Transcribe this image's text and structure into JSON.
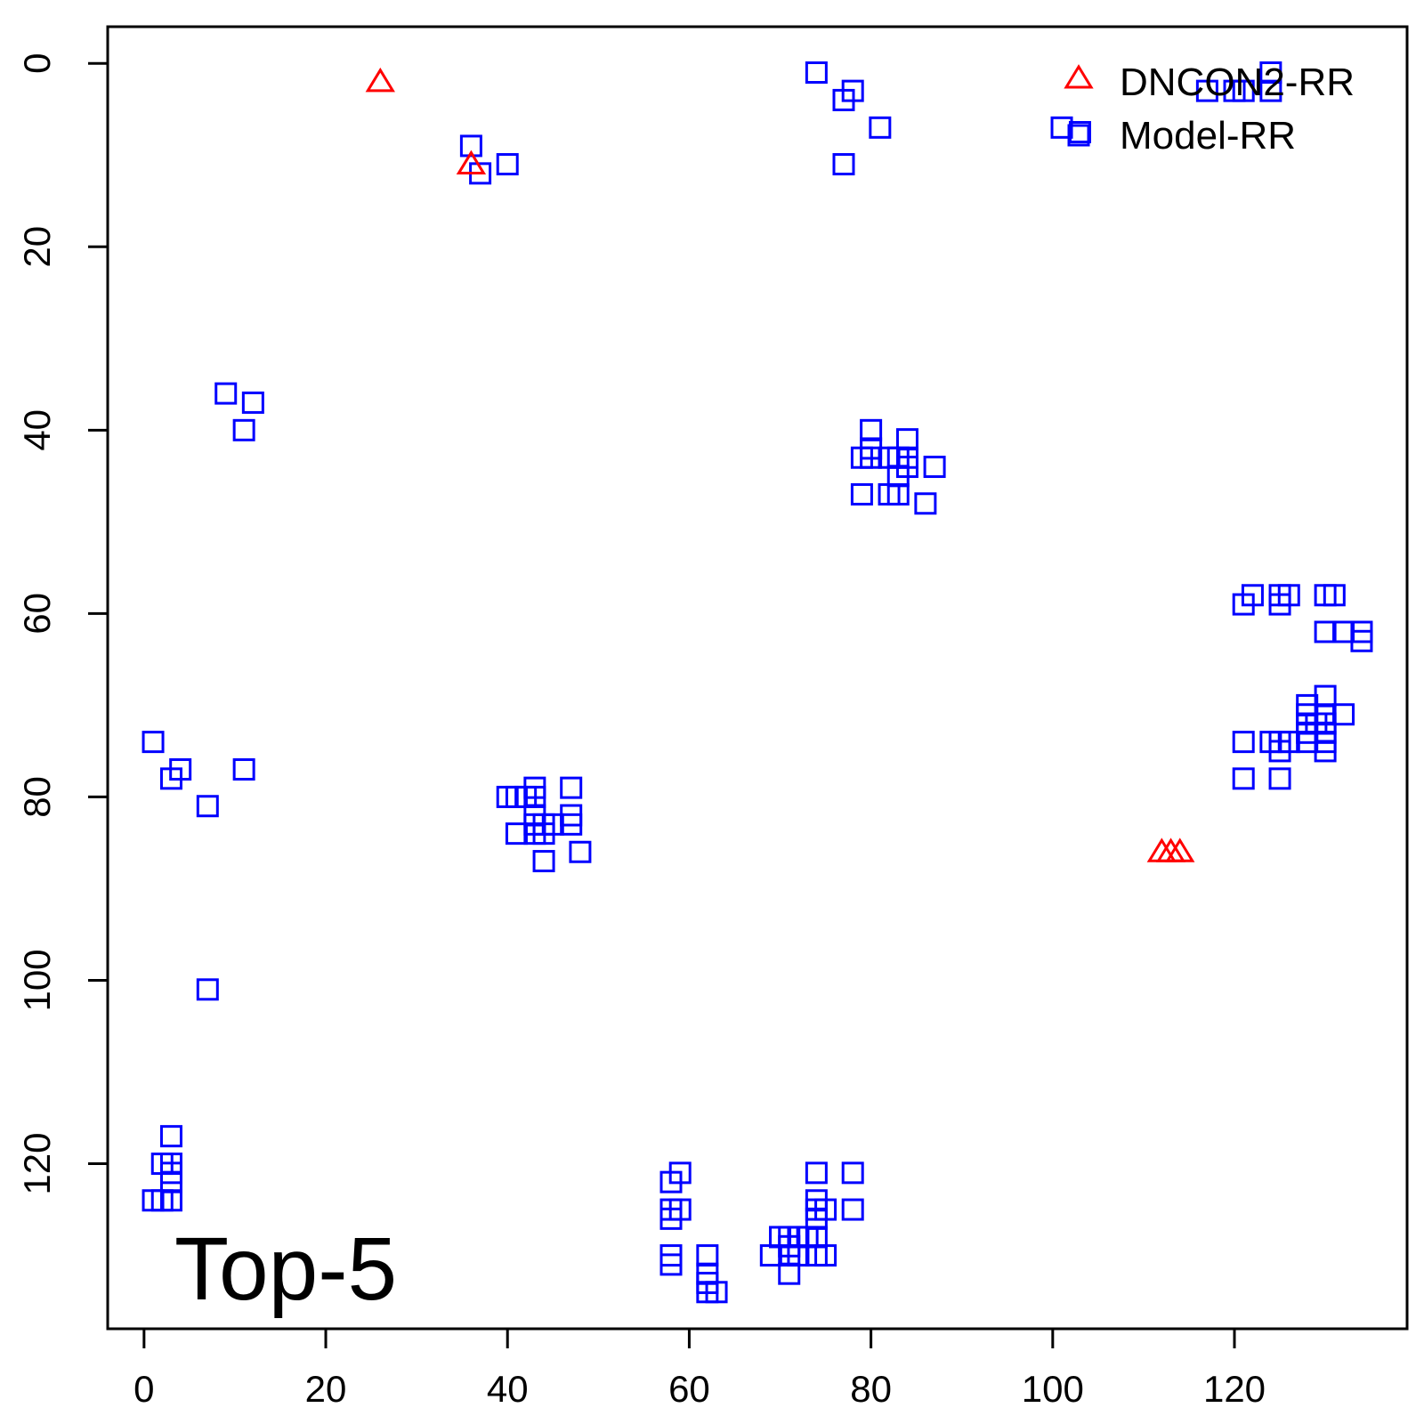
{
  "chart_data": {
    "type": "scatter",
    "title": "",
    "xlabel": "",
    "ylabel": "",
    "xlim": [
      -4,
      139
    ],
    "ylim": [
      138,
      -4
    ],
    "y_reversed": true,
    "x_ticks": [
      0,
      20,
      40,
      60,
      80,
      100,
      120
    ],
    "y_ticks": [
      0,
      20,
      40,
      60,
      80,
      100,
      120
    ],
    "x_tick_labels": [
      "0",
      "20",
      "40",
      "60",
      "80",
      "100",
      "120"
    ],
    "y_tick_labels": [
      "0",
      "20",
      "40",
      "60",
      "80",
      "100",
      "120"
    ],
    "grid": false,
    "legend_position": "top-right",
    "annotation": "Top-5",
    "series": [
      {
        "name": "DNCON2-RR",
        "marker": "triangle",
        "color": "#ff0000",
        "points": [
          [
            26,
            2
          ],
          [
            36,
            11
          ],
          [
            112,
            86
          ],
          [
            113,
            86
          ],
          [
            114,
            86
          ]
        ]
      },
      {
        "name": "Model-RR",
        "marker": "square",
        "color": "#0000ff",
        "points": [
          [
            36,
            9
          ],
          [
            37,
            12
          ],
          [
            40,
            11
          ],
          [
            74,
            1
          ],
          [
            77,
            4
          ],
          [
            78,
            3
          ],
          [
            81,
            7
          ],
          [
            77,
            11
          ],
          [
            117,
            3
          ],
          [
            120,
            3
          ],
          [
            121,
            3
          ],
          [
            124,
            1
          ],
          [
            124,
            3
          ],
          [
            101,
            7
          ],
          [
            103,
            7.5
          ],
          [
            9,
            36
          ],
          [
            12,
            37
          ],
          [
            11,
            40
          ],
          [
            80,
            40
          ],
          [
            80,
            42
          ],
          [
            79,
            43
          ],
          [
            80,
            43
          ],
          [
            82,
            43
          ],
          [
            83,
            43
          ],
          [
            84,
            41
          ],
          [
            84,
            43
          ],
          [
            84,
            44
          ],
          [
            83,
            45
          ],
          [
            87,
            44
          ],
          [
            79,
            47
          ],
          [
            82,
            47
          ],
          [
            83,
            47
          ],
          [
            86,
            48
          ],
          [
            121,
            59
          ],
          [
            122,
            58
          ],
          [
            125,
            58
          ],
          [
            125,
            59
          ],
          [
            126,
            58
          ],
          [
            130,
            58
          ],
          [
            131,
            58
          ],
          [
            130,
            62
          ],
          [
            132,
            62
          ],
          [
            134,
            62
          ],
          [
            134,
            63
          ],
          [
            121,
            74
          ],
          [
            124,
            74
          ],
          [
            125,
            74
          ],
          [
            125,
            75
          ],
          [
            126,
            74
          ],
          [
            128,
            70
          ],
          [
            128,
            71
          ],
          [
            128,
            72
          ],
          [
            128,
            73
          ],
          [
            128,
            74
          ],
          [
            129,
            72
          ],
          [
            130,
            69
          ],
          [
            130,
            71
          ],
          [
            130,
            72
          ],
          [
            130,
            73
          ],
          [
            130,
            74
          ],
          [
            130,
            75
          ],
          [
            132,
            71
          ],
          [
            121,
            78
          ],
          [
            125,
            78
          ],
          [
            1,
            74
          ],
          [
            3,
            78
          ],
          [
            4,
            77
          ],
          [
            11,
            77
          ],
          [
            7,
            81
          ],
          [
            7,
            101
          ],
          [
            40,
            80
          ],
          [
            41,
            80
          ],
          [
            42,
            80
          ],
          [
            43,
            79
          ],
          [
            43,
            80
          ],
          [
            43,
            82
          ],
          [
            43,
            83
          ],
          [
            43,
            84
          ],
          [
            44,
            83
          ],
          [
            44,
            84
          ],
          [
            45,
            83
          ],
          [
            47,
            79
          ],
          [
            47,
            82
          ],
          [
            47,
            83
          ],
          [
            41,
            84
          ],
          [
            44,
            87
          ],
          [
            48,
            86
          ],
          [
            3,
            117
          ],
          [
            2,
            120
          ],
          [
            3,
            120
          ],
          [
            3,
            121
          ],
          [
            3,
            122
          ],
          [
            1,
            124
          ],
          [
            2,
            124
          ],
          [
            3,
            124
          ],
          [
            58,
            122
          ],
          [
            59,
            121
          ],
          [
            58,
            125
          ],
          [
            59,
            125
          ],
          [
            58,
            126
          ],
          [
            58,
            130
          ],
          [
            58,
            131
          ],
          [
            62,
            130
          ],
          [
            62,
            132
          ],
          [
            62,
            133
          ],
          [
            62,
            134
          ],
          [
            63,
            134
          ],
          [
            69,
            130
          ],
          [
            70,
            128
          ],
          [
            71,
            128
          ],
          [
            71,
            129
          ],
          [
            71,
            130
          ],
          [
            71,
            132
          ],
          [
            72,
            128
          ],
          [
            72,
            130
          ],
          [
            73,
            128
          ],
          [
            74,
            121
          ],
          [
            74,
            124
          ],
          [
            74,
            125
          ],
          [
            74,
            126
          ],
          [
            74,
            128
          ],
          [
            74,
            130
          ],
          [
            75,
            125
          ],
          [
            75,
            130
          ],
          [
            78,
            121
          ],
          [
            78,
            125
          ]
        ]
      }
    ]
  }
}
